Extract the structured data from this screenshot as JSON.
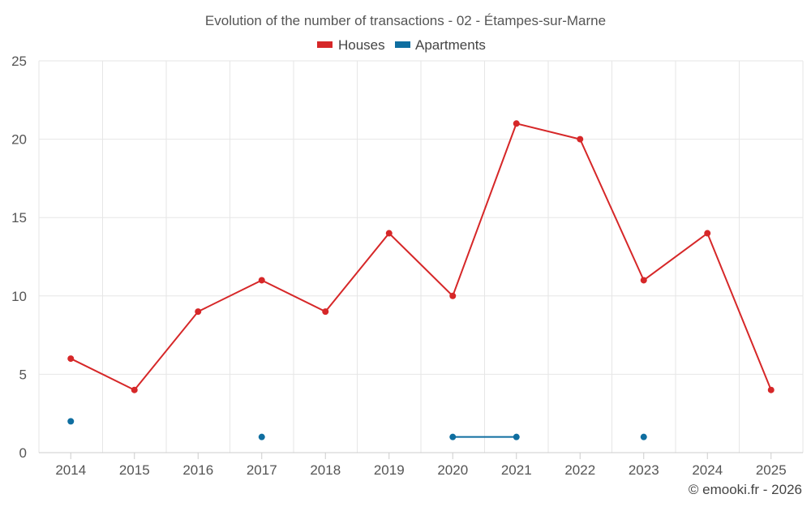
{
  "chart_data": {
    "type": "line",
    "title": "Evolution of the number of transactions - 02 - Étampes-sur-Marne",
    "categories": [
      "2014",
      "2015",
      "2016",
      "2017",
      "2018",
      "2019",
      "2020",
      "2021",
      "2022",
      "2023",
      "2024",
      "2025"
    ],
    "ylim": [
      0,
      25
    ],
    "yticks": [
      "0",
      "5",
      "10",
      "15",
      "20",
      "25"
    ],
    "series": [
      {
        "name": "Houses",
        "color": "#d62728",
        "values": [
          6,
          4,
          9,
          11,
          9,
          14,
          10,
          21,
          20,
          11,
          14,
          4
        ]
      },
      {
        "name": "Apartments",
        "color": "#0f6ea0",
        "values": [
          2,
          null,
          null,
          1,
          null,
          null,
          1,
          1,
          null,
          1,
          null,
          null
        ]
      }
    ],
    "grid": true,
    "legend": "top-center"
  },
  "credit": "© emooki.fr - 2026"
}
